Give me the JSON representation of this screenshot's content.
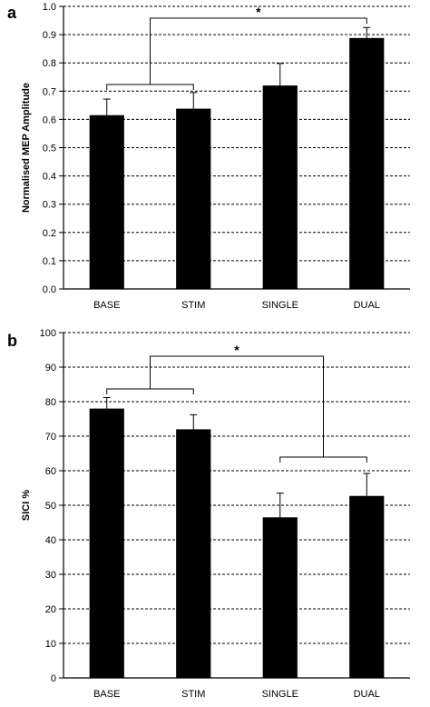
{
  "chart_data": [
    {
      "type": "bar",
      "panel_label": "a",
      "title": "",
      "xlabel": "",
      "ylabel": "Normalised MEP Amplitude",
      "categories": [
        "BASE",
        "STIM",
        "SINGLE",
        "DUAL"
      ],
      "values": [
        0.615,
        0.638,
        0.72,
        0.888
      ],
      "error_upper": [
        0.057,
        0.057,
        0.078,
        0.037
      ],
      "ylim": [
        0,
        1.0
      ],
      "yticks": [
        "0.0",
        "0.1",
        "0.2",
        "0.3",
        "0.4",
        "0.5",
        "0.6",
        "0.7",
        "0.8",
        "0.9",
        "1.0"
      ],
      "grid": "horizontal-dashed",
      "bar_color": "#000000",
      "significance": {
        "label": "*",
        "left_group": [
          "BASE",
          "STIM"
        ],
        "right_group": [
          "DUAL"
        ]
      }
    },
    {
      "type": "bar",
      "panel_label": "b",
      "title": "",
      "xlabel": "",
      "ylabel": "SICI %",
      "categories": [
        "BASE",
        "STIM",
        "SINGLE",
        "DUAL"
      ],
      "values": [
        78,
        72,
        46.5,
        52.7
      ],
      "error_upper": [
        3.2,
        4.2,
        7.0,
        6.5
      ],
      "ylim": [
        0,
        100
      ],
      "yticks": [
        "0",
        "10",
        "20",
        "30",
        "40",
        "50",
        "60",
        "70",
        "80",
        "90",
        "100"
      ],
      "grid": "horizontal-dashed",
      "bar_color": "#000000",
      "significance": {
        "label": "*",
        "left_group": [
          "BASE",
          "STIM"
        ],
        "right_group": [
          "SINGLE",
          "DUAL"
        ]
      }
    }
  ]
}
